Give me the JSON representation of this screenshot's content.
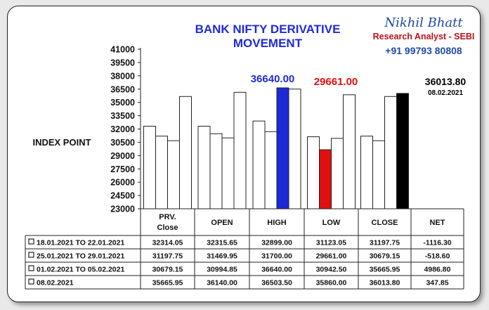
{
  "chart_data": {
    "type": "bar",
    "title": [
      "BANK NIFTY DERIVATIVE",
      "MOVEMENT"
    ],
    "ylabel": "INDEX POINT",
    "ylim": [
      23000,
      41000
    ],
    "yticks": [
      "41000",
      "39500",
      "38000",
      "36500",
      "35000",
      "33500",
      "32000",
      "30500",
      "29000",
      "27500",
      "26000",
      "24500",
      "23000"
    ],
    "categories": [
      [
        "PRV.",
        "Close"
      ],
      [
        "OPEN"
      ],
      [
        "HIGH"
      ],
      [
        "LOW"
      ],
      [
        "CLOSE"
      ]
    ],
    "net_header": "NET",
    "series": [
      {
        "name": "18.01.2021 TO 22.01.2021",
        "values": [
          32314.05,
          32315.65,
          32899.0,
          31123.05,
          31197.75
        ],
        "net": "-1116.30"
      },
      {
        "name": "25.01.2021 TO 29.01.2021",
        "values": [
          31197.75,
          31469.95,
          31700.0,
          29661.0,
          30679.15
        ],
        "net": "-518.60"
      },
      {
        "name": "01.02.2021 TO 05.02.2021",
        "values": [
          30679.15,
          30994.85,
          36640.0,
          30942.5,
          35665.95
        ],
        "net": "4986.80"
      },
      {
        "name": "08.02.2021",
        "values": [
          35665.95,
          36140.0,
          36503.5,
          35860.0,
          36013.8
        ],
        "net": "347.85"
      }
    ],
    "table_values": [
      [
        "32314.05",
        "32315.65",
        "32899.00",
        "31123.05",
        "31197.75",
        "-1116.30"
      ],
      [
        "31197.75",
        "31469.95",
        "31700.00",
        "29661.00",
        "30679.15",
        "-518.60"
      ],
      [
        "30679.15",
        "30994.85",
        "36640.00",
        "30942.50",
        "35665.95",
        "4986.80"
      ],
      [
        "35665.95",
        "36140.00",
        "36503.50",
        "35860.00",
        "36013.80",
        "347.85"
      ]
    ],
    "highlights": [
      {
        "category": 2,
        "series": 2,
        "color": "#1b2ad8"
      },
      {
        "category": 3,
        "series": 1,
        "color": "#e01010"
      },
      {
        "category": 4,
        "series": 3,
        "color": "#000000"
      }
    ],
    "annotations": {
      "high": {
        "text": "36640.00",
        "color": "#1f2bd6"
      },
      "low": {
        "text": "29661.00",
        "color": "#e01010"
      },
      "close": {
        "text": "36013.80",
        "color": "#000000"
      },
      "close_date": "08.02.2021"
    }
  },
  "brand": {
    "name": "Nikhil Bhatt",
    "role": "Research Analyst - SEBI",
    "phone": "+91 99793 80808"
  }
}
